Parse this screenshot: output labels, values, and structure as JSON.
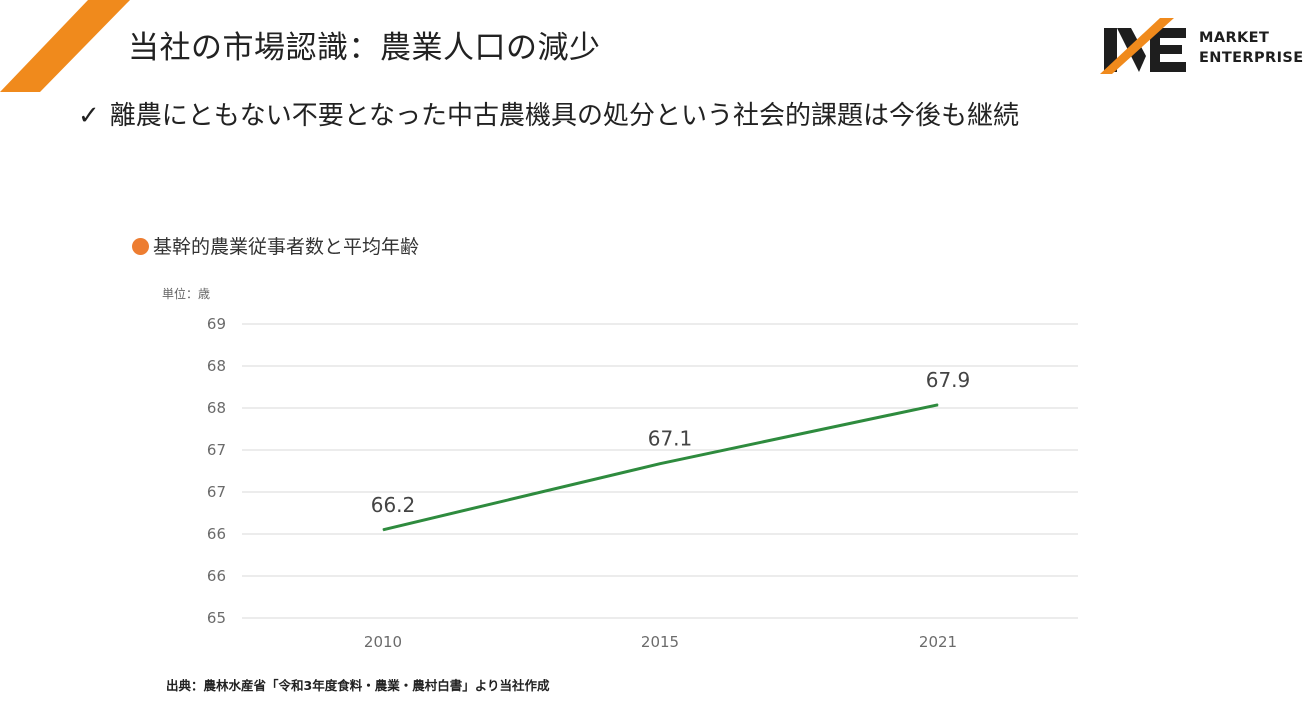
{
  "slide": {
    "title": "当社の市場認識：農業人口の減少",
    "headline_check": "✓",
    "headline": "離農にともない不要となった中古農機具の処分という社会的課題は今後も継続",
    "source": "出典：農林水産省「令和3年度食料・農業・農村白書」より当社作成"
  },
  "logo": {
    "line1": "MARKET",
    "line2": "ENTERPRISE",
    "accent_color": "#f08a1c",
    "mark_color": "#1e1e1e"
  },
  "colors": {
    "accent": "#f08a1c",
    "bullet": "#ed7d31",
    "line": "#2e8b3e",
    "grid": "#d9d9d9",
    "tick_text": "#6b6b6b",
    "label_text": "#444444"
  },
  "chart_data": {
    "type": "line",
    "title": "基幹的農業従事者数と平均年齢",
    "unit_label": "単位：歳",
    "categories": [
      "2010",
      "2015",
      "2021"
    ],
    "values": [
      66.2,
      67.1,
      67.9
    ],
    "data_labels": [
      "66.2",
      "67.1",
      "67.9"
    ],
    "yticks": [
      "69",
      "68",
      "68",
      "67",
      "67",
      "66",
      "66",
      "65"
    ],
    "ylim": [
      65,
      69
    ],
    "grid": true,
    "legend": "none"
  }
}
